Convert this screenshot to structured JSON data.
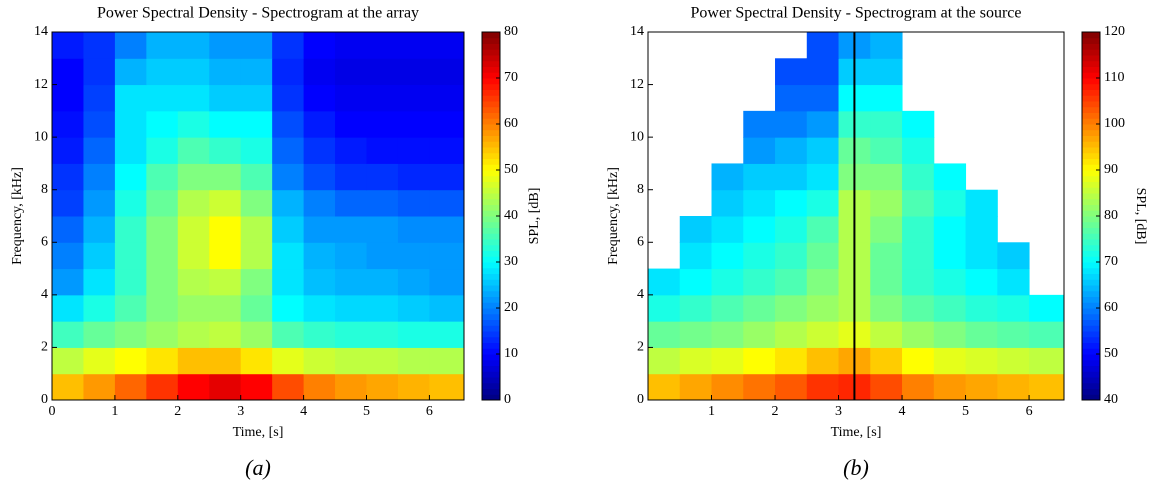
{
  "chart_data": [
    {
      "type": "heatmap",
      "title": "Power Spectral Density - Spectrogram at the array",
      "xlabel": "Time, [s]",
      "ylabel": "Frequency, [kHz]",
      "colorbar_label": "SPL, [dB]",
      "caption": "(a)",
      "colormap": "jet",
      "x_edges": [
        0,
        0.5,
        1,
        1.5,
        2,
        2.5,
        3,
        3.5,
        4,
        4.5,
        5,
        5.5,
        6,
        6.55
      ],
      "y_edges": [
        0,
        1,
        2,
        3,
        4,
        5,
        6,
        7,
        8,
        9,
        10,
        11,
        12,
        13,
        14
      ],
      "values": [
        [
          55,
          58,
          62,
          66,
          70,
          72,
          70,
          64,
          60,
          58,
          57,
          56,
          55
        ],
        [
          45,
          48,
          50,
          52,
          55,
          55,
          52,
          48,
          46,
          45,
          45,
          44,
          44
        ],
        [
          35,
          38,
          40,
          42,
          44,
          45,
          42,
          36,
          34,
          33,
          33,
          32,
          32
        ],
        [
          28,
          32,
          36,
          40,
          42,
          42,
          38,
          30,
          28,
          27,
          27,
          26,
          25
        ],
        [
          22,
          28,
          34,
          40,
          44,
          45,
          40,
          28,
          25,
          24,
          24,
          23,
          22
        ],
        [
          20,
          26,
          34,
          40,
          46,
          50,
          44,
          28,
          24,
          23,
          22,
          22,
          22
        ],
        [
          18,
          24,
          34,
          40,
          46,
          50,
          44,
          26,
          22,
          22,
          22,
          21,
          21
        ],
        [
          15,
          22,
          32,
          38,
          44,
          46,
          40,
          24,
          20,
          18,
          18,
          17,
          17
        ],
        [
          14,
          20,
          30,
          36,
          40,
          40,
          36,
          20,
          16,
          14,
          14,
          13,
          13
        ],
        [
          12,
          18,
          28,
          32,
          36,
          34,
          32,
          18,
          14,
          12,
          11,
          11,
          11
        ],
        [
          11,
          16,
          28,
          30,
          32,
          30,
          30,
          16,
          12,
          10,
          10,
          10,
          10
        ],
        [
          10,
          15,
          28,
          28,
          28,
          26,
          26,
          14,
          10,
          9,
          9,
          9,
          9
        ],
        [
          10,
          14,
          24,
          26,
          26,
          24,
          24,
          13,
          9,
          8,
          8,
          8,
          8
        ],
        [
          12,
          14,
          20,
          24,
          24,
          22,
          22,
          14,
          10,
          9,
          9,
          9,
          9
        ]
      ],
      "xlim": [
        0,
        6.55
      ],
      "ylim": [
        0,
        14
      ],
      "xticks": [
        0,
        1,
        2,
        3,
        4,
        5,
        6
      ],
      "yticks": [
        0,
        2,
        4,
        6,
        8,
        10,
        12,
        14
      ],
      "clim": [
        0,
        80
      ],
      "cticks": [
        0,
        10,
        20,
        30,
        40,
        50,
        60,
        70,
        80
      ]
    },
    {
      "type": "heatmap",
      "title": "Power Spectral Density - Spectrogram at the source",
      "xlabel": "Time, [s]",
      "ylabel": "Frequency, [kHz]",
      "colorbar_label": "SPL, [dB]",
      "caption": "(b)",
      "colormap": "jet",
      "x_edges": [
        0,
        0.5,
        1,
        1.5,
        2,
        2.5,
        3,
        3.5,
        4,
        4.5,
        5,
        5.5,
        6,
        6.55
      ],
      "y_edges": [
        0,
        1,
        2,
        3,
        4,
        5,
        6,
        7,
        8,
        9,
        10,
        11,
        12,
        13,
        14
      ],
      "values": [
        [
          95,
          97,
          99,
          101,
          103,
          106,
          107,
          104,
          100,
          98,
          97,
          96,
          95
        ],
        [
          85,
          87,
          88,
          90,
          92,
          95,
          97,
          94,
          90,
          88,
          87,
          86,
          85
        ],
        [
          78,
          79,
          80,
          82,
          84,
          86,
          88,
          85,
          82,
          80,
          78,
          77,
          76
        ],
        [
          72,
          74,
          76,
          78,
          80,
          82,
          84,
          80,
          77,
          75,
          73,
          72,
          70
        ],
        [
          68,
          70,
          72,
          74,
          76,
          80,
          84,
          78,
          74,
          72,
          70,
          68,
          null
        ],
        [
          null,
          68,
          70,
          72,
          74,
          78,
          84,
          78,
          74,
          70,
          68,
          66,
          null
        ],
        [
          null,
          66,
          68,
          70,
          72,
          76,
          84,
          80,
          74,
          70,
          68,
          null,
          null
        ],
        [
          null,
          null,
          66,
          68,
          70,
          72,
          84,
          82,
          76,
          72,
          68,
          null,
          null
        ],
        [
          null,
          null,
          64,
          66,
          66,
          68,
          80,
          80,
          74,
          70,
          null,
          null,
          null
        ],
        [
          null,
          null,
          null,
          62,
          64,
          66,
          78,
          76,
          72,
          null,
          null,
          null,
          null
        ],
        [
          null,
          null,
          null,
          60,
          60,
          62,
          74,
          74,
          70,
          null,
          null,
          null,
          null
        ],
        [
          null,
          null,
          null,
          null,
          58,
          58,
          70,
          70,
          null,
          null,
          null,
          null,
          null
        ],
        [
          null,
          null,
          null,
          null,
          56,
          56,
          66,
          66,
          null,
          null,
          null,
          null,
          null
        ],
        [
          null,
          null,
          null,
          null,
          null,
          56,
          62,
          64,
          null,
          null,
          null,
          null,
          null
        ]
      ],
      "xlim": [
        0,
        6.55
      ],
      "ylim": [
        0,
        14
      ],
      "xticks": [
        1,
        2,
        3,
        4,
        5,
        6
      ],
      "yticks": [
        0,
        2,
        4,
        6,
        8,
        10,
        12,
        14
      ],
      "clim": [
        40,
        120
      ],
      "cticks": [
        40,
        50,
        60,
        70,
        80,
        90,
        100,
        110,
        120
      ],
      "vline": 3.25
    }
  ]
}
